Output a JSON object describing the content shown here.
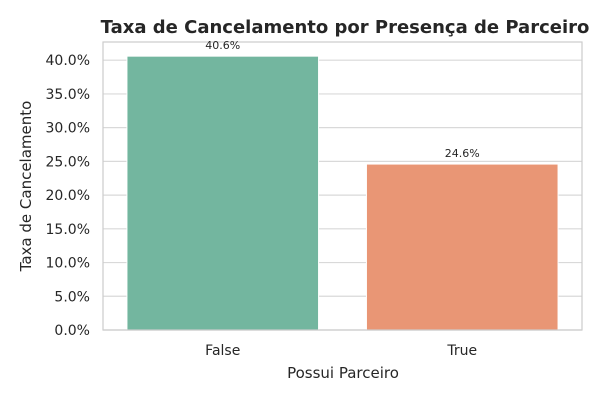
{
  "chart_data": {
    "type": "bar",
    "title": "Taxa de Cancelamento por Presença de Parceiro",
    "xlabel": "Possui Parceiro",
    "ylabel": "Taxa de Cancelamento",
    "categories": [
      "False",
      "True"
    ],
    "values": [
      0.406,
      0.246
    ],
    "data_labels": [
      "40.6%",
      "24.6%"
    ],
    "colors": [
      "#73b69f",
      "#e99675"
    ],
    "ylim": [
      0,
      0.427
    ],
    "yticks": [
      0,
      0.05,
      0.1,
      0.15,
      0.2,
      0.25,
      0.3,
      0.35,
      0.4
    ],
    "ytick_labels": [
      "0.0%",
      "5.0%",
      "10.0%",
      "15.0%",
      "20.0%",
      "25.0%",
      "30.0%",
      "35.0%",
      "40.0%"
    ],
    "grid": true,
    "grid_axis": "y"
  }
}
